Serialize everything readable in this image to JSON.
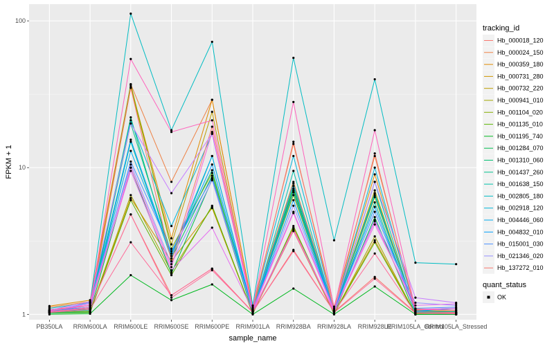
{
  "chart_data": {
    "type": "line",
    "xlabel": "sample_name",
    "ylabel": "FPKM + 1",
    "y_scale": "log10",
    "ylim": [
      0.92,
      130
    ],
    "y_ticks": [
      1,
      10,
      100
    ],
    "y_tick_labels": [
      "1",
      "10",
      "100"
    ],
    "categories": [
      "PB350LA",
      "RRIM600LA",
      "RRIM600LE",
      "RRIM600SE",
      "RRIM600PE",
      "RRIM901LA",
      "RRIM928BA",
      "RRIM928LA",
      "RRIM928LE",
      "RRIM105LA_Control",
      "RRIM105LA_Stressed"
    ],
    "grid": true,
    "panel_background": "#ebebeb",
    "legend_position": "right",
    "legend_title": "tracking_id",
    "series": [
      {
        "name": "Hb_000018_120",
        "color": "#F8766D",
        "values": [
          1.05,
          1.1,
          4.8,
          1.35,
          2.05,
          1.04,
          2.75,
          1.04,
          1.8,
          1.03,
          1.01
        ]
      },
      {
        "name": "Hb_000024_150",
        "color": "#EE8043",
        "values": [
          1.12,
          1.22,
          37,
          8.0,
          29.0,
          1.12,
          14.5,
          1.13,
          12.0,
          1.07,
          1.07
        ]
      },
      {
        "name": "Hb_000359_180",
        "color": "#E08B00",
        "values": [
          1.14,
          1.25,
          36,
          3.3,
          29,
          1.1,
          8.0,
          1.09,
          9.0,
          1.09,
          1.07
        ]
      },
      {
        "name": "Hb_000731_280",
        "color": "#CF9400",
        "values": [
          1.03,
          1.04,
          6.2,
          2.3,
          5.3,
          1.01,
          3.9,
          1.02,
          3.2,
          1.01,
          1.0
        ]
      },
      {
        "name": "Hb_000732_220",
        "color": "#BB9D00",
        "values": [
          1.07,
          1.1,
          35,
          3.0,
          24,
          1.05,
          7.0,
          1.05,
          7.0,
          1.04,
          1.03
        ]
      },
      {
        "name": "Hb_000941_010",
        "color": "#A3A500",
        "values": [
          1.03,
          1.05,
          6.5,
          1.95,
          5.4,
          1.02,
          3.7,
          1.01,
          3.4,
          1.0,
          1.0
        ]
      },
      {
        "name": "Hb_001104_020",
        "color": "#85AD00",
        "values": [
          1.06,
          1.12,
          37,
          2.8,
          9.2,
          1.08,
          6.5,
          1.06,
          6.3,
          1.06,
          1.05
        ]
      },
      {
        "name": "Hb_001135_010",
        "color": "#5BB300",
        "values": [
          1.02,
          1.03,
          6.0,
          1.85,
          5.5,
          1.01,
          4.0,
          1.01,
          3.1,
          1.0,
          1.0
        ]
      },
      {
        "name": "Hb_001195_740",
        "color": "#00B81F",
        "values": [
          1.0,
          1.01,
          1.85,
          1.25,
          1.6,
          1.0,
          1.5,
          1.0,
          1.55,
          1.0,
          1.0
        ]
      },
      {
        "name": "Hb_001284_070",
        "color": "#00BB4E",
        "values": [
          1.02,
          1.04,
          10.0,
          1.9,
          8.3,
          1.01,
          7.2,
          1.01,
          4.6,
          1.0,
          1.0
        ]
      },
      {
        "name": "Hb_001310_060",
        "color": "#00BE71",
        "values": [
          1.05,
          1.08,
          22,
          2.4,
          8.8,
          1.04,
          7.5,
          1.04,
          6.7,
          1.03,
          1.02
        ]
      },
      {
        "name": "Hb_001437_260",
        "color": "#00C08E",
        "values": [
          1.04,
          1.08,
          20,
          2.6,
          9.6,
          1.05,
          6.8,
          1.04,
          5.8,
          1.03,
          1.03
        ]
      },
      {
        "name": "Hb_001638_150",
        "color": "#00C0AA",
        "values": [
          1.03,
          1.07,
          15,
          2.4,
          12,
          1.04,
          9.5,
          1.04,
          8.0,
          1.02,
          1.02
        ]
      },
      {
        "name": "Hb_002805_180",
        "color": "#00BCC3",
        "values": [
          1.1,
          1.2,
          112,
          18,
          72,
          1.15,
          56,
          3.2,
          40,
          2.25,
          2.2
        ]
      },
      {
        "name": "Hb_002918_120",
        "color": "#00B6D9",
        "values": [
          1.06,
          1.15,
          21,
          4.0,
          17,
          1.08,
          12,
          1.07,
          10,
          1.05,
          1.04
        ]
      },
      {
        "name": "Hb_004446_060",
        "color": "#00ACEC",
        "values": [
          1.04,
          1.1,
          13,
          2.6,
          12,
          1.06,
          6.8,
          1.06,
          6.5,
          1.04,
          1.04
        ]
      },
      {
        "name": "Hb_004832_010",
        "color": "#00A0FA",
        "values": [
          1.06,
          1.12,
          15.5,
          2.5,
          10.5,
          1.05,
          6.0,
          1.05,
          5.4,
          1.05,
          1.1
        ]
      },
      {
        "name": "Hb_015001_030",
        "color": "#4A90FF",
        "values": [
          1.05,
          1.15,
          11,
          2.7,
          8.5,
          1.06,
          7.8,
          1.06,
          5.0,
          1.1,
          1.12
        ]
      },
      {
        "name": "Hb_021346_020",
        "color": "#9590FF",
        "values": [
          1.05,
          1.2,
          10.5,
          2.2,
          8.2,
          1.05,
          5.5,
          1.05,
          4.4,
          1.2,
          1.15
        ]
      },
      {
        "name": "Hb_137272_010",
        "color": "#F8766D",
        "values": [
          1.08,
          1.15,
          35,
          2.3,
          19,
          1.07,
          15,
          1.05,
          12.5,
          1.04,
          1.03
        ]
      },
      {
        "name": "",
        "color": "#C77CFF",
        "values": [
          1.07,
          1.22,
          20,
          6.7,
          17,
          1.08,
          5.0,
          1.07,
          8.0,
          1.3,
          1.2
        ]
      },
      {
        "name": "",
        "color": "#E56CF0",
        "values": [
          1.05,
          1.18,
          9.5,
          2.0,
          3.9,
          1.06,
          3.8,
          1.05,
          4.1,
          1.15,
          1.18
        ]
      },
      {
        "name": "",
        "color": "#FA62D9",
        "values": [
          1.04,
          1.12,
          10.0,
          2.1,
          17.5,
          1.06,
          4.9,
          1.05,
          4.3,
          1.08,
          1.1
        ]
      },
      {
        "name": "",
        "color": "#FF62BC",
        "values": [
          1.06,
          1.15,
          55,
          17.5,
          21,
          1.1,
          28,
          1.1,
          18,
          1.08,
          1.07
        ]
      },
      {
        "name": "",
        "color": "#FF6C98",
        "values": [
          1.04,
          1.1,
          4.8,
          1.3,
          2.0,
          1.04,
          2.7,
          1.04,
          2.6,
          1.02,
          1.02
        ]
      },
      {
        "name": "",
        "color": "#FF6A98",
        "values": [
          1.03,
          1.08,
          3.1,
          1.35,
          2.05,
          1.03,
          3.7,
          1.03,
          1.75,
          1.02,
          1.01
        ]
      }
    ],
    "shape_legend": {
      "title": "quant_status",
      "items": [
        {
          "label": "OK"
        }
      ]
    }
  }
}
